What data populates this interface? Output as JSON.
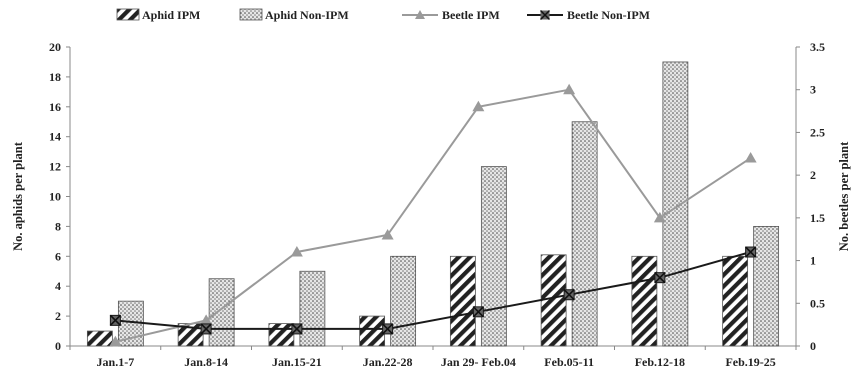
{
  "chart_data": {
    "type": "bar",
    "categories": [
      "Jan.1-7",
      "Jan.8-14",
      "Jan.15-21",
      "Jan.22-28",
      "Jan 29- Feb.04",
      "Feb.05-11",
      "Feb.12-18",
      "Feb.19-25"
    ],
    "series": [
      {
        "name": "Aphid IPM",
        "type": "bar",
        "axis": "left",
        "pattern": "diagonal-hatch",
        "values": [
          1,
          1.5,
          1.5,
          2,
          6,
          6.1,
          6,
          6
        ]
      },
      {
        "name": "Aphid Non-IPM",
        "type": "bar",
        "axis": "left",
        "pattern": "dotted",
        "values": [
          3,
          4.5,
          5,
          6,
          12,
          15,
          19,
          8
        ]
      },
      {
        "name": "Beetle IPM",
        "type": "line",
        "axis": "right",
        "marker": "triangle",
        "color": "#9a9a9a",
        "values": [
          0.05,
          0.3,
          1.1,
          1.3,
          2.8,
          3.0,
          1.5,
          2.2
        ]
      },
      {
        "name": "Beetle Non-IPM",
        "type": "line",
        "axis": "right",
        "marker": "x-square",
        "color": "#1a1a1a",
        "values": [
          0.3,
          0.2,
          0.2,
          0.2,
          0.4,
          0.6,
          0.8,
          1.1
        ]
      }
    ],
    "ylabel": "No. aphids per plant",
    "y2label": "No. beetles per plant",
    "ylim": [
      0,
      20
    ],
    "y2lim": [
      0,
      3.5
    ],
    "yticks": [
      "0",
      "2",
      "4",
      "6",
      "8",
      "10",
      "12",
      "14",
      "16",
      "18",
      "20"
    ],
    "y2ticks": [
      "0",
      "0.5",
      "1",
      "1.5",
      "2",
      "2.5",
      "3",
      "3.5"
    ],
    "grid": false,
    "legend_position": "top"
  }
}
